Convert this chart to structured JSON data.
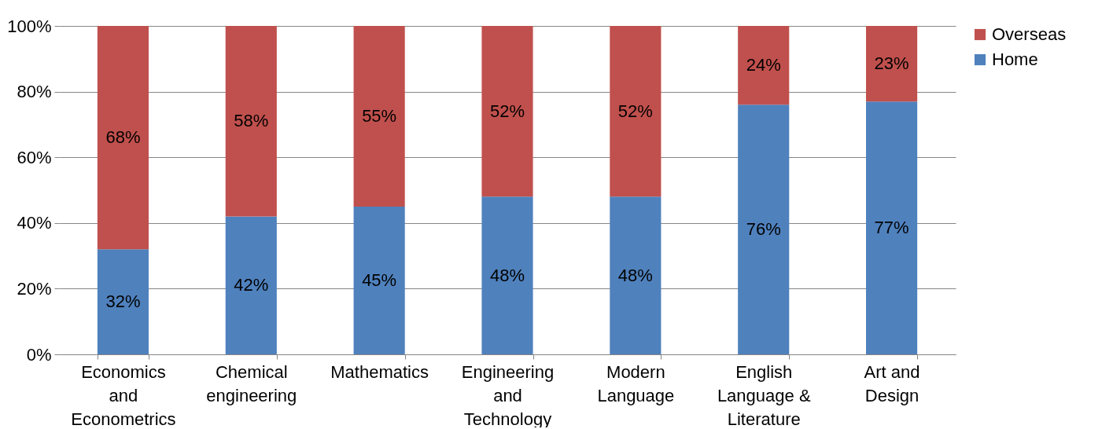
{
  "chart_data": {
    "type": "bar",
    "stacked": true,
    "categories": [
      "Economics and Econometrics",
      "Chemical engineering",
      "Mathematics",
      "Engineering and Technology",
      "Modern Language",
      "English Language & Literature",
      "Art and Design"
    ],
    "series": [
      {
        "name": "Home",
        "color": "#4f81bd",
        "values": [
          32,
          42,
          45,
          48,
          48,
          76,
          77
        ],
        "value_labels": [
          "32%",
          "42%",
          "45%",
          "48%",
          "48%",
          "76%",
          "77%"
        ]
      },
      {
        "name": "Overseas",
        "color": "#c0504d",
        "values": [
          68,
          58,
          55,
          52,
          52,
          24,
          23
        ],
        "value_labels": [
          "68%",
          "58%",
          "55%",
          "52%",
          "52%",
          "24%",
          "23%"
        ]
      }
    ],
    "ylim": [
      0,
      100
    ],
    "yticks": [
      {
        "value": 0,
        "label": "0%"
      },
      {
        "value": 20,
        "label": "20%"
      },
      {
        "value": 40,
        "label": "40%"
      },
      {
        "value": 60,
        "label": "60%"
      },
      {
        "value": 80,
        "label": "80%"
      },
      {
        "value": 100,
        "label": "100%"
      }
    ],
    "grid": "y",
    "legend": "right"
  }
}
